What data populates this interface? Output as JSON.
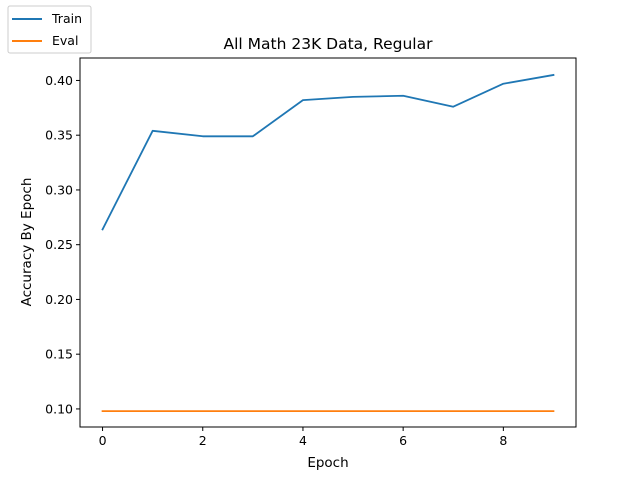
{
  "chart_data": {
    "type": "line",
    "title": "All Math 23K Data, Regular",
    "xlabel": "Epoch",
    "ylabel": "Accuracy By Epoch",
    "x": [
      0,
      1,
      2,
      3,
      4,
      5,
      6,
      7,
      8,
      9
    ],
    "xlim": [
      -0.45,
      9.45
    ],
    "ylim": [
      0.0835,
      0.4205
    ],
    "xticks": [
      0,
      2,
      4,
      6,
      8
    ],
    "yticks": [
      0.1,
      0.15,
      0.2,
      0.25,
      0.3,
      0.35,
      0.4
    ],
    "ytick_labels": [
      "0.10",
      "0.15",
      "0.20",
      "0.25",
      "0.30",
      "0.35",
      "0.40"
    ],
    "grid": false,
    "legend_position": "top-left (outside axes)",
    "series": [
      {
        "name": "Train",
        "color": "#1f77b4",
        "values": [
          0.264,
          0.354,
          0.349,
          0.349,
          0.382,
          0.385,
          0.386,
          0.376,
          0.397,
          0.405
        ]
      },
      {
        "name": "Eval",
        "color": "#ff7f0e",
        "values": [
          0.098,
          0.098,
          0.098,
          0.098,
          0.098,
          0.098,
          0.098,
          0.098,
          0.098,
          0.098
        ]
      }
    ]
  }
}
